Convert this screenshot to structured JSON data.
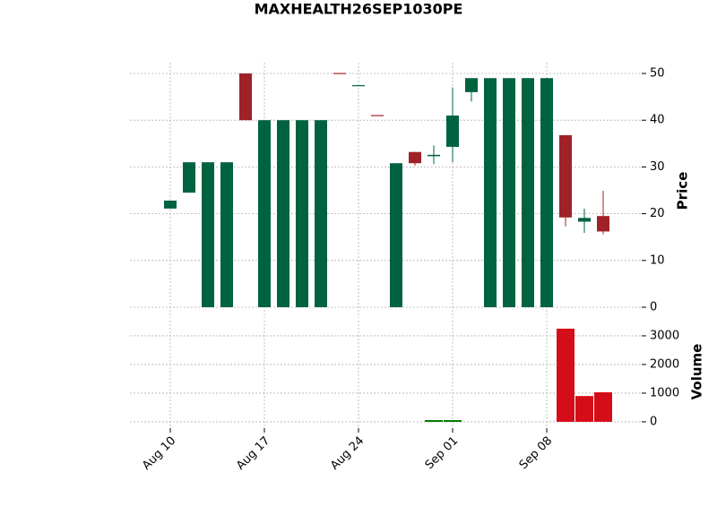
{
  "chart_data": {
    "type": "candlestick",
    "title": "MAXHEALTH26SEP1030PE",
    "categories": [
      "Aug 10",
      null,
      null,
      null,
      null,
      "Aug 17",
      null,
      null,
      null,
      null,
      "Aug 24",
      null,
      null,
      null,
      null,
      "Sep 01",
      null,
      null,
      null,
      null,
      "Sep 08",
      null,
      null,
      null
    ],
    "open": [
      21.1,
      24.5,
      0,
      0,
      50,
      0,
      0,
      0,
      0,
      50.1,
      47.3,
      41.1,
      0,
      33.2,
      32.3,
      34.3,
      46,
      0,
      0,
      0,
      0,
      36.8,
      18.3,
      19.5
    ],
    "high": [
      22.8,
      31,
      31,
      31,
      50,
      40,
      40,
      40,
      40,
      50.1,
      47.5,
      41.1,
      30.8,
      33.2,
      34.6,
      47,
      49,
      49,
      49,
      49,
      49,
      36.8,
      21.1,
      24.9
    ],
    "low": [
      21.1,
      24.5,
      0,
      0,
      40,
      0,
      0,
      0,
      0,
      50,
      47.3,
      41,
      0,
      30.3,
      30.6,
      31,
      44,
      0,
      0,
      0,
      0,
      17.3,
      15.9,
      15.6
    ],
    "close": [
      22.8,
      31,
      31,
      31,
      40,
      40,
      40,
      40,
      40,
      50,
      47.5,
      41,
      30.8,
      30.8,
      32.6,
      41,
      49,
      49,
      49,
      49,
      49,
      19.2,
      19.1,
      16.2
    ],
    "volume": [
      0,
      0,
      0,
      0,
      0,
      0,
      0,
      0,
      0,
      0,
      0,
      0,
      0,
      0,
      60,
      60,
      0,
      0,
      0,
      0,
      0,
      3250,
      900,
      1030
    ],
    "up_color": "#006340",
    "down_color": "#a02128",
    "volume_up_color": "#007a00",
    "volume_down_color": "#d50d18",
    "ylabel": "Price",
    "ylim": [
      -2.3,
      52.3
    ],
    "yticks": [
      0,
      10,
      20,
      30,
      40,
      50
    ],
    "y2label": "Volume",
    "y2lim": [
      -220,
      3530
    ],
    "y2ticks": [
      0,
      1000,
      2000,
      3000
    ],
    "grid": true
  }
}
